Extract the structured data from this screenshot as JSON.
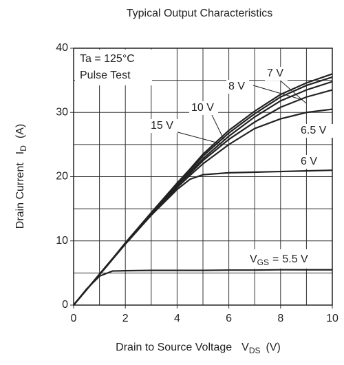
{
  "chart_data": {
    "type": "line",
    "title": "Typical Output Characteristics",
    "xlabel": {
      "text": "Drain to Source Voltage",
      "symbol": "V",
      "sub": "DS",
      "unit": "(V)"
    },
    "ylabel": {
      "text": "Drain Current",
      "symbol": "I",
      "sub": "D",
      "unit": "(A)"
    },
    "annotations": [
      "Ta = 125°C",
      "Pulse Test"
    ],
    "vgs_label": {
      "symbol": "V",
      "sub": "GS",
      "eq": "="
    },
    "x": [
      0,
      0.5,
      1,
      1.5,
      2,
      3,
      4,
      4.5,
      5,
      6,
      7,
      8,
      9,
      10
    ],
    "series": [
      {
        "name": "5.5 V",
        "color": "#222222",
        "values": [
          0,
          2.5,
          4.5,
          5.3,
          5.35,
          5.4,
          5.4,
          5.4,
          5.4,
          5.45,
          5.45,
          5.5,
          5.5,
          5.5
        ]
      },
      {
        "name": "6 V",
        "color": "#222222",
        "values": [
          0,
          2.4,
          4.7,
          7.1,
          9.5,
          14,
          18,
          19.6,
          20.3,
          20.6,
          20.7,
          20.8,
          20.9,
          21
        ]
      },
      {
        "name": "6.5 V",
        "color": "#222222",
        "values": [
          0,
          2.4,
          4.8,
          7.2,
          9.5,
          14,
          18.3,
          20.2,
          22,
          25,
          27.5,
          29,
          30,
          30.5
        ]
      },
      {
        "name": "7 V",
        "color": "#222222",
        "values": [
          0,
          2.4,
          4.8,
          7.2,
          9.6,
          14.1,
          18.5,
          20.5,
          22.5,
          25.8,
          28.5,
          30.8,
          32.4,
          33.5
        ]
      },
      {
        "name": "8 V",
        "color": "#222222",
        "values": [
          0,
          2.4,
          4.8,
          7.2,
          9.6,
          14.2,
          18.6,
          20.7,
          22.8,
          26.3,
          29.3,
          31.8,
          33.5,
          34.8
        ]
      },
      {
        "name": "10 V",
        "color": "#222222",
        "values": [
          0,
          2.4,
          4.8,
          7.2,
          9.6,
          14.3,
          18.8,
          21,
          23.2,
          26.8,
          29.8,
          32.4,
          34.2,
          35.5
        ]
      },
      {
        "name": "15 V",
        "color": "#222222",
        "values": [
          0,
          2.4,
          4.8,
          7.2,
          9.7,
          14.4,
          19,
          21.2,
          23.5,
          27.2,
          30.2,
          32.8,
          34.6,
          36
        ]
      }
    ],
    "xlim": [
      0,
      10
    ],
    "ylim": [
      0,
      40
    ],
    "xticks": [
      0,
      2,
      4,
      6,
      8,
      10
    ],
    "yticks": [
      0,
      10,
      20,
      30,
      40
    ],
    "xgrid": [
      1,
      2,
      3,
      4,
      5,
      6,
      7,
      8,
      9
    ],
    "ygrid": [
      5,
      10,
      15,
      20,
      25,
      30,
      35
    ],
    "grid": true
  }
}
